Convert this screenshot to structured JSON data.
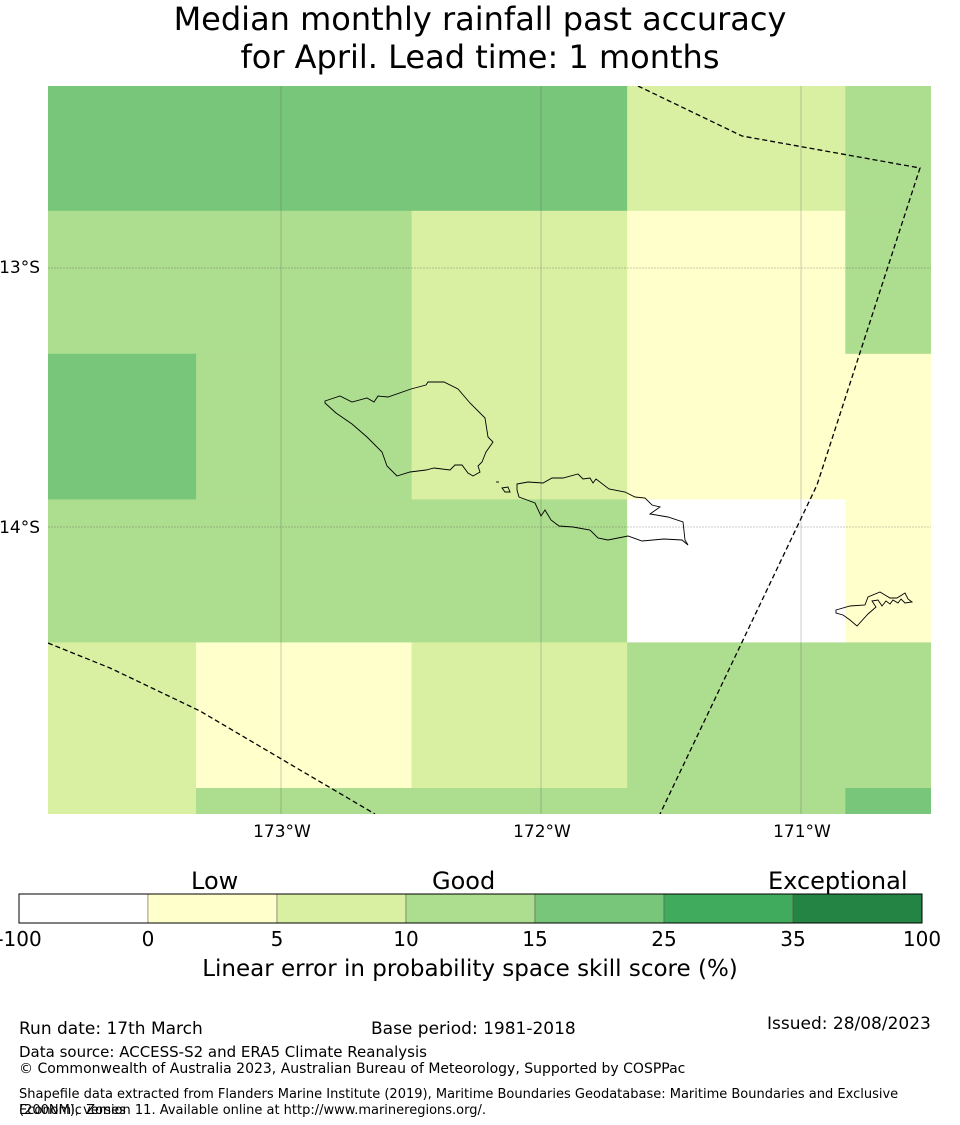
{
  "title": {
    "line1": "Median monthly rainfall past accuracy",
    "line2": "for April. Lead time: 1 months"
  },
  "map": {
    "lat_labels": [
      "13°S",
      "14°S"
    ],
    "lon_labels": [
      "173°W",
      "172°W",
      "171°W"
    ],
    "lon_range": [
      -173.9,
      -170.5
    ],
    "lat_range": [
      -12.3,
      -15.1
    ],
    "grid_lons": [
      -173.0,
      -172.0,
      -171.0
    ],
    "grid_lats": [
      -13.0,
      -14.0
    ],
    "cell_colors": {
      "white": "#ffffff",
      "c0_5": "#ffffcc",
      "c5_10": "#d9f0a3",
      "c10_15": "#addd8e",
      "c15_25": "#78c679"
    },
    "cells": [
      {
        "lon0": -173.9,
        "lon1": -171.67,
        "lat0": -12.3,
        "lat1": -12.78,
        "color": "c15_25"
      },
      {
        "lon0": -171.67,
        "lon1": -170.83,
        "lat0": -12.3,
        "lat1": -12.78,
        "color": "c5_10"
      },
      {
        "lon0": -170.83,
        "lon1": -170.5,
        "lat0": -12.3,
        "lat1": -12.78,
        "color": "c10_15"
      },
      {
        "lon0": -173.9,
        "lon1": -172.5,
        "lat0": -12.78,
        "lat1": -13.33,
        "color": "c10_15"
      },
      {
        "lon0": -172.5,
        "lon1": -171.67,
        "lat0": -12.78,
        "lat1": -13.33,
        "color": "c5_10"
      },
      {
        "lon0": -171.67,
        "lon1": -170.83,
        "lat0": -12.78,
        "lat1": -13.33,
        "color": "c0_5"
      },
      {
        "lon0": -170.83,
        "lon1": -170.5,
        "lat0": -12.78,
        "lat1": -13.33,
        "color": "c10_15"
      },
      {
        "lon0": -173.9,
        "lon1": -173.33,
        "lat0": -13.33,
        "lat1": -13.89,
        "color": "c15_25"
      },
      {
        "lon0": -173.33,
        "lon1": -172.5,
        "lat0": -13.33,
        "lat1": -13.89,
        "color": "c10_15"
      },
      {
        "lon0": -172.5,
        "lon1": -171.67,
        "lat0": -13.33,
        "lat1": -13.89,
        "color": "c5_10"
      },
      {
        "lon0": -171.67,
        "lon1": -170.5,
        "lat0": -13.33,
        "lat1": -13.89,
        "color": "c0_5"
      },
      {
        "lon0": -173.9,
        "lon1": -171.67,
        "lat0": -13.89,
        "lat1": -14.44,
        "color": "c10_15"
      },
      {
        "lon0": -171.67,
        "lon1": -170.83,
        "lat0": -13.89,
        "lat1": -14.44,
        "color": "white"
      },
      {
        "lon0": -170.83,
        "lon1": -170.5,
        "lat0": -13.89,
        "lat1": -14.44,
        "color": "c0_5"
      },
      {
        "lon0": -173.9,
        "lon1": -173.33,
        "lat0": -14.44,
        "lat1": -15.1,
        "color": "c5_10"
      },
      {
        "lon0": -173.33,
        "lon1": -172.5,
        "lat0": -14.44,
        "lat1": -15.0,
        "color": "c0_5"
      },
      {
        "lon0": -172.5,
        "lon1": -171.67,
        "lat0": -14.44,
        "lat1": -15.0,
        "color": "c5_10"
      },
      {
        "lon0": -173.33,
        "lon1": -171.67,
        "lat0": -15.0,
        "lat1": -15.1,
        "color": "c10_15"
      },
      {
        "lon0": -171.67,
        "lon1": -170.5,
        "lat0": -14.44,
        "lat1": -15.0,
        "color": "c10_15"
      },
      {
        "lon0": -171.67,
        "lon1": -170.83,
        "lat0": -15.0,
        "lat1": -15.1,
        "color": "c10_15"
      },
      {
        "lon0": -170.83,
        "lon1": -170.5,
        "lat0": -15.0,
        "lat1": -15.1,
        "color": "c15_25"
      }
    ]
  },
  "legend": {
    "categories": [
      "Low",
      "Good",
      "Exceptional"
    ],
    "ticks": [
      "-100",
      "0",
      "5",
      "10",
      "15",
      "25",
      "35",
      "100"
    ],
    "colors": [
      "#ffffff",
      "#ffffcc",
      "#d9f0a3",
      "#addd8e",
      "#78c679",
      "#41ab5d",
      "#238443"
    ],
    "label": "Linear error in probability space skill score (%)"
  },
  "footer": {
    "run_date": "Run date: 17th March",
    "base_period": "Base period: 1981-2018",
    "issued": "Issued: 28/08/2023",
    "data_source": "Data source: ACCESS-S2 and ERA5 Climate Reanalysis",
    "copyright": "© Commonwealth of Australia 2023, Australian Bureau of Meteorology, Supported by COSPPac",
    "shapefile_line1": "Shapefile data extracted from Flanders Marine Institute (2019), Maritime Boundaries Geodatabase: Maritime Boundaries and Exclusive Economic Zones",
    "shapefile_line2": "(200NM), version 11. Available online at http://www.marineregions.org/."
  }
}
